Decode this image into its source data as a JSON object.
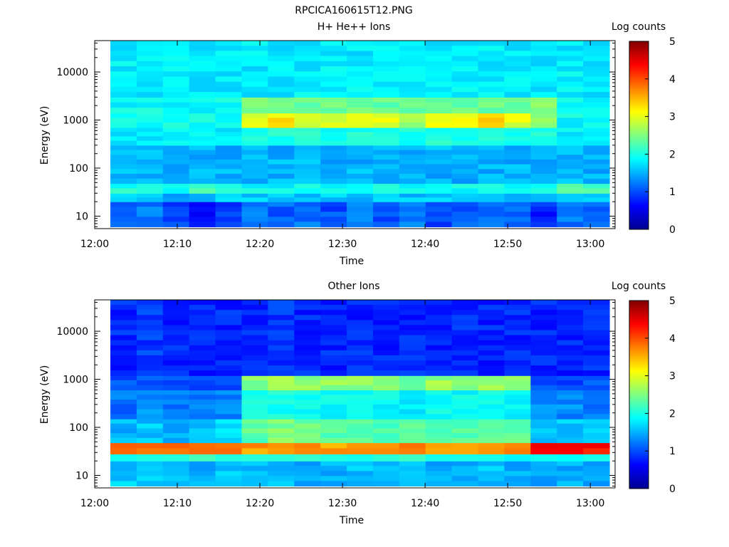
{
  "figure": {
    "filename": "RPCICA160615T12.PNG"
  },
  "panels": [
    {
      "id": "top",
      "title": "H+ He++ Ions",
      "colorbar_label": "Log counts",
      "xlabel": "Time",
      "ylabel": "Energy (eV)"
    },
    {
      "id": "bottom",
      "title": "Other Ions",
      "colorbar_label": "Log counts",
      "xlabel": "Time",
      "ylabel": "Energy (eV)"
    }
  ],
  "chart_data": [
    {
      "type": "heatmap",
      "title": "H+ He++ Ions",
      "xlabel": "Time",
      "ylabel": "Energy (eV)",
      "yscale": "log",
      "xlim": [
        "12:00",
        "13:03"
      ],
      "ylim": [
        5.5,
        45000
      ],
      "x_ticks": [
        "12:00",
        "12:10",
        "12:20",
        "12:30",
        "12:40",
        "12:50",
        "13:00"
      ],
      "y_ticks": [
        "10",
        "100",
        "1000",
        "10000"
      ],
      "colorbar": {
        "label": "Log counts",
        "range": [
          0,
          5
        ],
        "ticks": [
          "0",
          "1",
          "2",
          "3",
          "4",
          "5"
        ],
        "colormap": "jet"
      },
      "time_bins": [
        "12:02",
        "12:05",
        "12:08",
        "12:12",
        "12:15",
        "12:18",
        "12:21",
        "12:24",
        "12:28",
        "12:31",
        "12:34",
        "12:37",
        "12:40",
        "12:44",
        "12:47",
        "12:50",
        "12:53",
        "12:56",
        "13:00"
      ],
      "energy_rows": [
        {
          "energy_range": [
            6,
            20
          ],
          "values": [
            1.2,
            1.2,
            1.0,
            0.7,
            0.9,
            1.3,
            1.1,
            1.2,
            1.0,
            1.2,
            1.0,
            1.2,
            1.0,
            1.1,
            1.2,
            1.1,
            0.8,
            1.2,
            1.1
          ]
        },
        {
          "energy_range": [
            20,
            30
          ],
          "values": [
            1.6,
            1.6,
            1.5,
            1.5,
            1.6,
            1.6,
            1.6,
            1.6,
            1.6,
            1.6,
            1.6,
            1.6,
            1.6,
            1.6,
            1.6,
            1.6,
            1.6,
            1.6,
            1.6
          ]
        },
        {
          "energy_range": [
            30,
            48
          ],
          "values": [
            2.0,
            2.0,
            2.0,
            2.2,
            2.0,
            1.9,
            1.9,
            1.9,
            1.9,
            1.9,
            1.9,
            1.9,
            1.9,
            1.9,
            1.9,
            1.9,
            1.9,
            2.2,
            2.2
          ]
        },
        {
          "energy_range": [
            48,
            300
          ],
          "values": [
            1.5,
            1.5,
            1.5,
            1.5,
            1.5,
            1.5,
            1.5,
            1.5,
            1.5,
            1.5,
            1.5,
            1.5,
            1.5,
            1.5,
            1.5,
            1.5,
            1.5,
            1.5,
            1.5
          ]
        },
        {
          "energy_range": [
            300,
            700
          ],
          "values": [
            1.8,
            1.8,
            1.8,
            1.8,
            1.8,
            2.0,
            2.0,
            2.0,
            2.0,
            2.0,
            2.0,
            2.0,
            2.0,
            2.0,
            2.0,
            2.0,
            2.0,
            1.8,
            1.8
          ]
        },
        {
          "energy_range": [
            700,
            1400
          ],
          "values": [
            1.9,
            1.9,
            1.9,
            1.9,
            1.9,
            3.0,
            3.2,
            3.0,
            3.0,
            3.0,
            3.0,
            2.6,
            3.1,
            3.0,
            3.3,
            3.0,
            2.5,
            1.9,
            1.9
          ]
        },
        {
          "energy_range": [
            1400,
            3000
          ],
          "values": [
            1.9,
            1.9,
            1.9,
            1.9,
            1.9,
            2.5,
            2.5,
            2.4,
            2.4,
            2.4,
            2.4,
            2.4,
            2.4,
            2.4,
            2.4,
            2.4,
            2.5,
            1.9,
            1.9
          ]
        },
        {
          "energy_range": [
            3000,
            45000
          ],
          "values": [
            1.8,
            1.8,
            1.8,
            1.8,
            1.8,
            1.8,
            1.8,
            1.8,
            1.8,
            1.8,
            1.8,
            1.8,
            1.8,
            1.8,
            1.8,
            1.8,
            1.8,
            1.8,
            1.8
          ]
        }
      ]
    },
    {
      "type": "heatmap",
      "title": "Other Ions",
      "xlabel": "Time",
      "ylabel": "Energy (eV)",
      "yscale": "log",
      "xlim": [
        "12:00",
        "13:03"
      ],
      "ylim": [
        5.5,
        45000
      ],
      "x_ticks": [
        "12:00",
        "12:10",
        "12:20",
        "12:30",
        "12:40",
        "12:50",
        "13:00"
      ],
      "y_ticks": [
        "10",
        "100",
        "1000",
        "10000"
      ],
      "colorbar": {
        "label": "Log counts",
        "range": [
          0,
          5
        ],
        "ticks": [
          "0",
          "1",
          "2",
          "3",
          "4",
          "5"
        ],
        "colormap": "jet"
      },
      "time_bins": [
        "12:02",
        "12:05",
        "12:08",
        "12:12",
        "12:15",
        "12:18",
        "12:21",
        "12:24",
        "12:28",
        "12:31",
        "12:34",
        "12:37",
        "12:40",
        "12:44",
        "12:47",
        "12:50",
        "12:53",
        "12:56",
        "13:00"
      ],
      "energy_rows": [
        {
          "energy_range": [
            6,
            20
          ],
          "values": [
            1.6,
            1.6,
            1.5,
            1.5,
            1.6,
            1.5,
            1.6,
            1.5,
            1.5,
            1.6,
            1.5,
            1.6,
            1.5,
            1.5,
            1.6,
            1.5,
            1.5,
            1.5,
            1.5
          ]
        },
        {
          "energy_range": [
            20,
            28
          ],
          "values": [
            2.0,
            2.0,
            2.0,
            2.1,
            2.2,
            2.0,
            2.0,
            2.0,
            2.0,
            2.0,
            2.0,
            2.0,
            2.0,
            2.0,
            2.0,
            2.0,
            2.0,
            2.0,
            2.0
          ]
        },
        {
          "energy_range": [
            28,
            48
          ],
          "values": [
            3.9,
            3.9,
            3.9,
            4.0,
            3.8,
            3.6,
            3.7,
            3.6,
            3.6,
            3.7,
            3.8,
            3.8,
            3.7,
            3.7,
            3.7,
            3.7,
            4.3,
            4.4,
            4.3
          ]
        },
        {
          "energy_range": [
            48,
            150
          ],
          "values": [
            1.5,
            1.6,
            1.5,
            1.6,
            1.8,
            2.3,
            2.5,
            2.4,
            2.3,
            2.3,
            2.3,
            2.3,
            2.3,
            2.3,
            2.3,
            2.4,
            1.6,
            1.6,
            1.6
          ]
        },
        {
          "energy_range": [
            150,
            600
          ],
          "values": [
            1.2,
            1.3,
            1.2,
            1.2,
            1.3,
            1.9,
            2.0,
            1.9,
            1.9,
            1.9,
            1.9,
            1.8,
            1.9,
            1.9,
            1.9,
            1.9,
            1.3,
            1.3,
            1.2
          ]
        },
        {
          "energy_range": [
            600,
            1200
          ],
          "values": [
            1.0,
            1.1,
            1.0,
            1.0,
            1.0,
            2.5,
            2.7,
            2.6,
            2.6,
            2.6,
            2.5,
            2.2,
            2.6,
            2.6,
            2.7,
            2.6,
            1.0,
            1.0,
            1.0
          ]
        },
        {
          "energy_range": [
            1200,
            45000
          ],
          "values": [
            0.8,
            0.9,
            0.8,
            0.8,
            0.8,
            0.8,
            0.9,
            0.8,
            0.8,
            0.8,
            0.8,
            0.8,
            0.8,
            0.8,
            0.8,
            0.8,
            0.8,
            0.8,
            0.8
          ]
        }
      ]
    }
  ]
}
